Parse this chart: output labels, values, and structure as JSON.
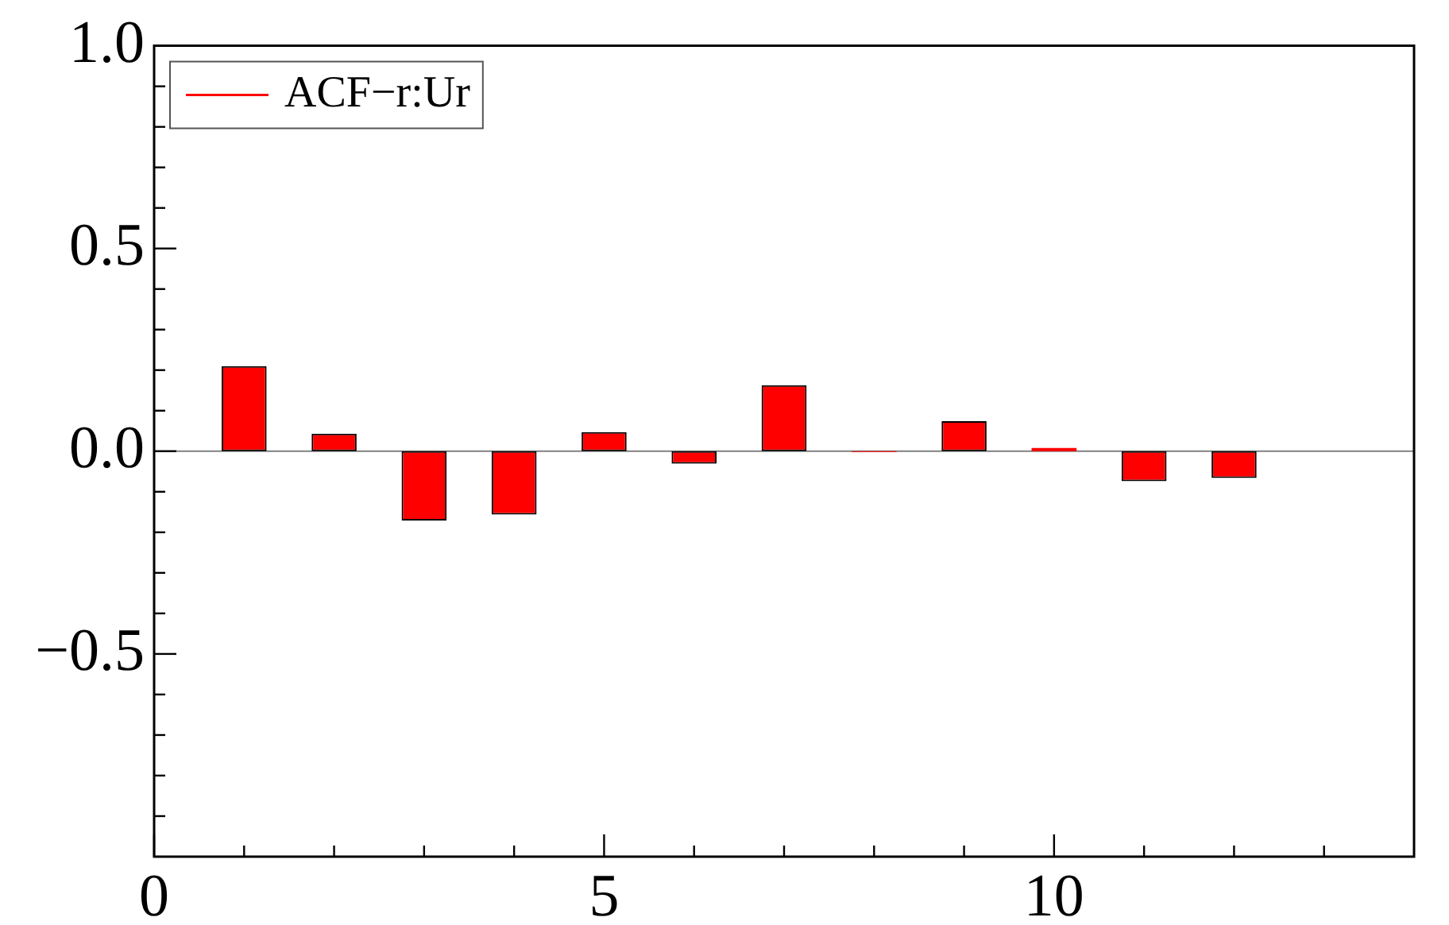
{
  "chart_data": {
    "type": "bar",
    "x": [
      1,
      2,
      3,
      4,
      5,
      6,
      7,
      8,
      9,
      10,
      11,
      12
    ],
    "series": [
      {
        "name": "ACF−r:Ur",
        "color": "#ff0000",
        "values": [
          0.21,
          0.043,
          -0.171,
          -0.156,
          0.047,
          -0.031,
          0.163,
          -0.002,
          0.074,
          0.008,
          -0.074,
          -0.066
        ]
      }
    ],
    "xlim": [
      0,
      14
    ],
    "xticks": [
      0,
      {
        "value": 1,
        "label": null
      },
      {
        "value": 2,
        "label": null
      },
      {
        "value": 3,
        "label": null
      },
      {
        "value": 4,
        "label": null
      },
      5,
      {
        "value": 6,
        "label": null
      },
      {
        "value": 7,
        "label": null
      },
      {
        "value": 8,
        "label": null
      },
      {
        "value": 9,
        "label": null
      },
      10,
      {
        "value": 11,
        "label": null
      },
      {
        "value": 12,
        "label": null
      },
      {
        "value": 13,
        "label": null
      }
    ],
    "ylim": [
      -1,
      1
    ],
    "yticks": [
      {
        "value": -0.9,
        "label": null
      },
      {
        "value": -0.8,
        "label": null
      },
      {
        "value": -0.7,
        "label": null
      },
      {
        "value": -0.6,
        "label": null
      },
      {
        "value": -0.5,
        "label": "−0.5"
      },
      {
        "value": -0.4,
        "label": null
      },
      {
        "value": -0.3,
        "label": null
      },
      {
        "value": -0.2,
        "label": null
      },
      {
        "value": -0.1,
        "label": null
      },
      {
        "value": 0,
        "label": "0.0"
      },
      {
        "value": 0.1,
        "label": null
      },
      {
        "value": 0.2,
        "label": null
      },
      {
        "value": 0.3,
        "label": null
      },
      {
        "value": 0.4,
        "label": null
      },
      {
        "value": 0.5,
        "label": "0.5"
      },
      {
        "value": 0.6,
        "label": null
      },
      {
        "value": 0.7,
        "label": null
      },
      {
        "value": 0.8,
        "label": null
      },
      {
        "value": 0.9,
        "label": null
      },
      {
        "value": 1,
        "label": "1.0"
      }
    ],
    "ref_lines": [
      {
        "axis": "y",
        "value": 0,
        "color": "#808080"
      }
    ],
    "legend": "top left",
    "grid": false
  }
}
